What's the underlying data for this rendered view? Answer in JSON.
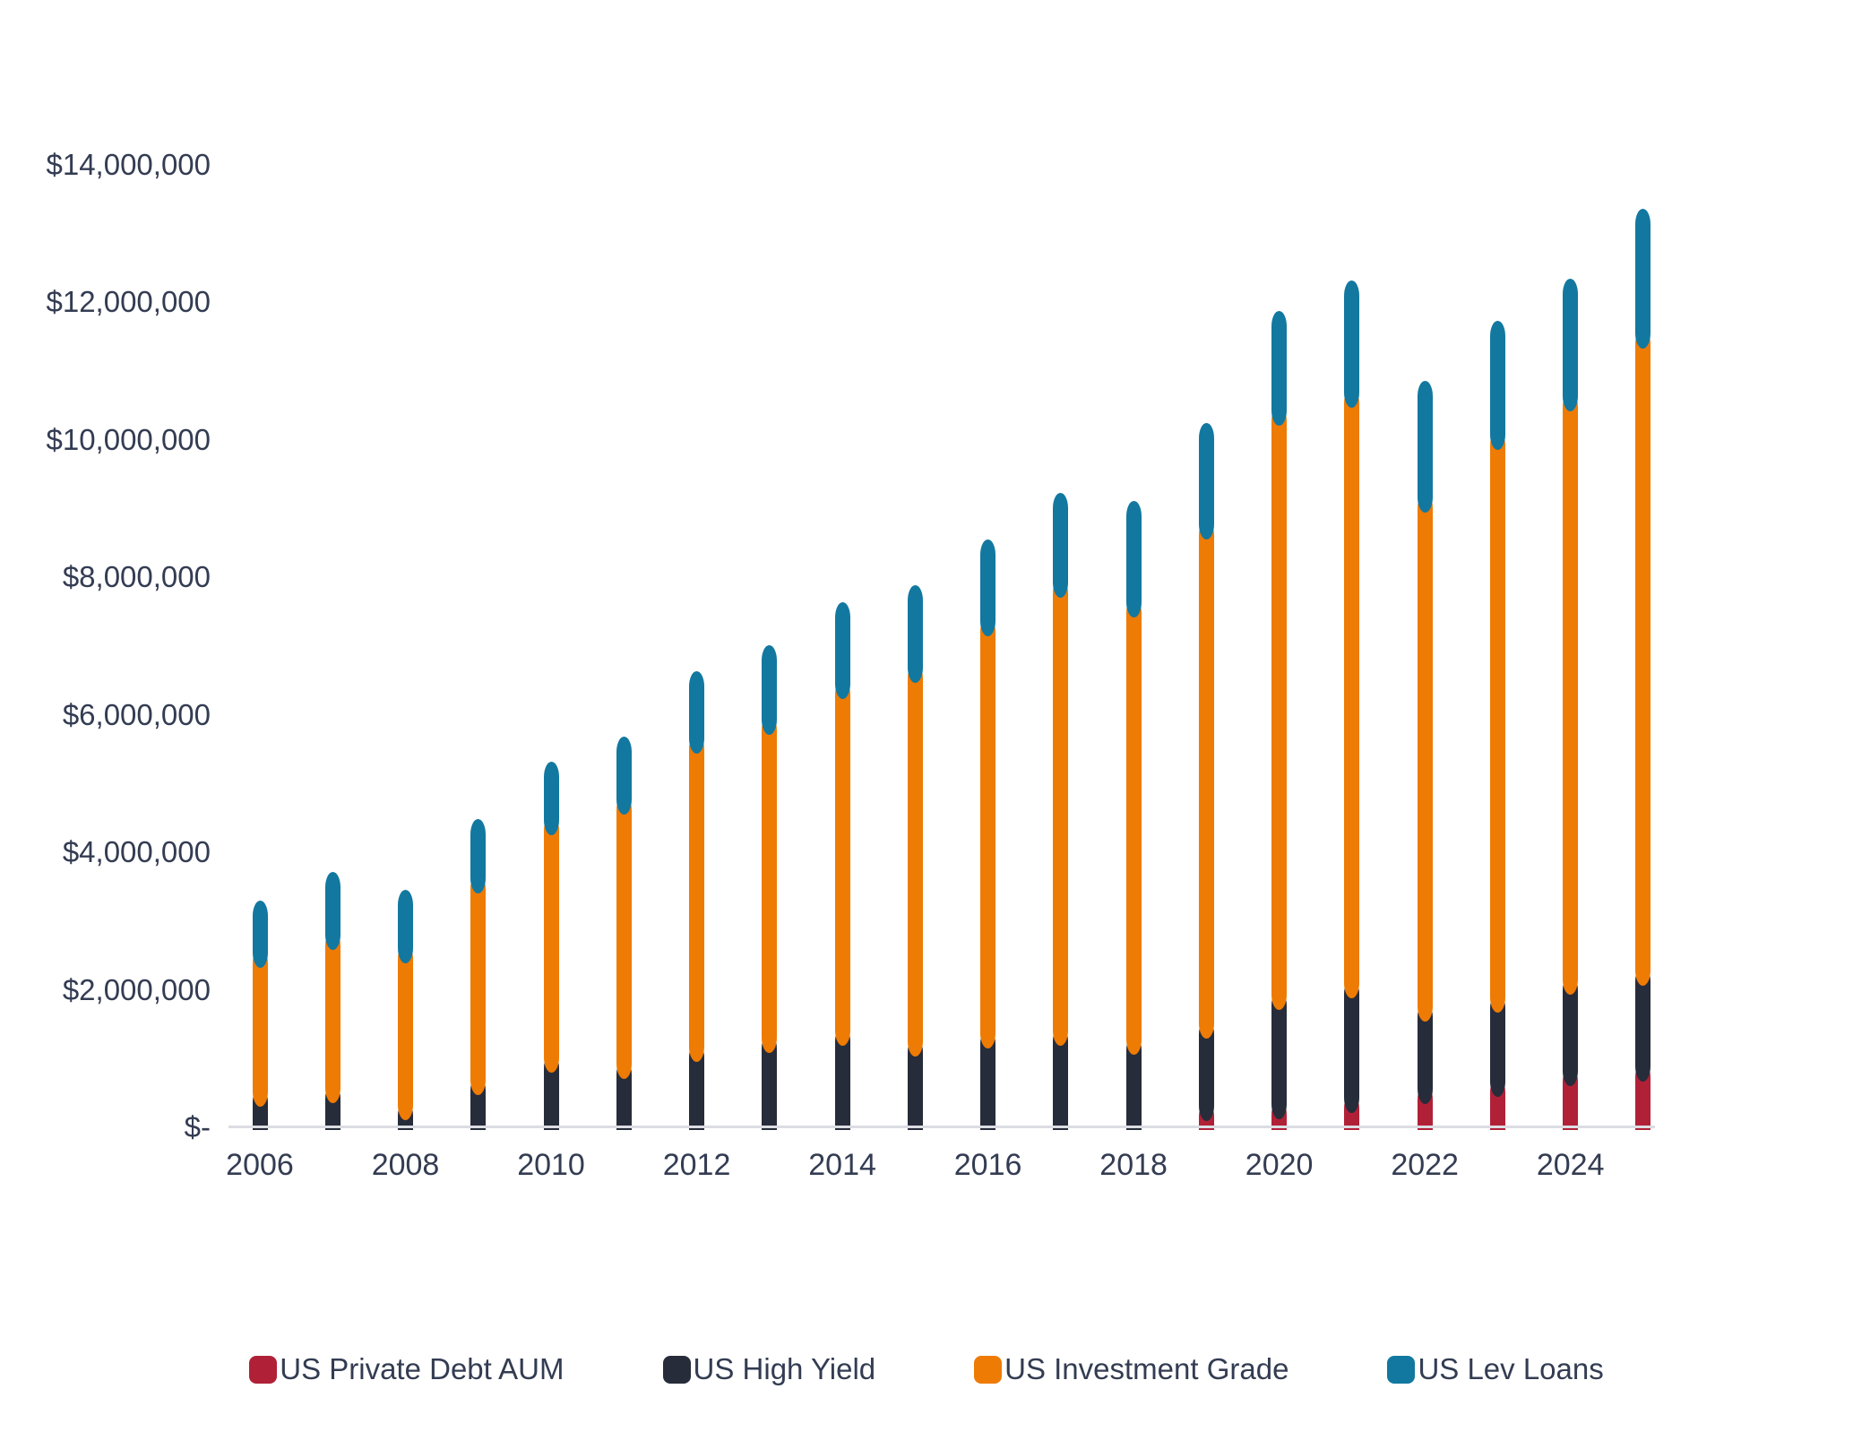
{
  "chart_data": {
    "type": "bar",
    "stacked": true,
    "title": "",
    "categories": [
      "2006",
      "2007",
      "2008",
      "2009",
      "2010",
      "2011",
      "2012",
      "2013",
      "2014",
      "2015",
      "2016",
      "2017",
      "2018",
      "2019",
      "2020",
      "2021",
      "2022",
      "2023",
      "2024",
      "2025"
    ],
    "x_tick_labels": [
      "2006",
      "2008",
      "2010",
      "2012",
      "2014",
      "2016",
      "2018",
      "2020",
      "2022",
      "2024"
    ],
    "series": [
      {
        "name": "US Private Debt AUM",
        "color": "#B02137",
        "values": [
          25000,
          30000,
          35000,
          40000,
          50000,
          55000,
          65000,
          90000,
          120000,
          150000,
          155000,
          160000,
          220000,
          360000,
          390000,
          480000,
          610000,
          720000,
          870000,
          940000
        ]
      },
      {
        "name": "US High Yield",
        "color": "#272C3A",
        "values": [
          550000,
          595000,
          345000,
          705000,
          1020000,
          925000,
          1160000,
          1265000,
          1340000,
          1150000,
          1265000,
          1300000,
          1110000,
          1200000,
          1590000,
          1670000,
          1200000,
          1220000,
          1335000,
          1390000
        ]
      },
      {
        "name": "US Investment Grade",
        "color": "#EE7B04",
        "values": [
          2020000,
          2225000,
          2280000,
          2930000,
          3450000,
          3840000,
          4485000,
          4625000,
          5040000,
          5440000,
          6000000,
          6520000,
          6360000,
          7270000,
          8500000,
          8590000,
          7410000,
          8190000,
          8490000,
          9270000
        ]
      },
      {
        "name": "US Lev Loans",
        "color": "#1278A0",
        "values": [
          690000,
          850000,
          780000,
          800000,
          790000,
          850000,
          915000,
          1020000,
          1130000,
          1130000,
          1120000,
          1240000,
          1410000,
          1400000,
          1380000,
          1570000,
          1630000,
          1590000,
          1640000,
          1750000
        ]
      }
    ],
    "y_axis": {
      "min": 0,
      "max": 14000000,
      "tick_interval": 2000000,
      "tick_labels": [
        "$-",
        "$2,000,000",
        "$4,000,000",
        "$6,000,000",
        "$8,000,000",
        "$10,000,000",
        "$12,000,000",
        "$14,000,000"
      ]
    },
    "legend_position": "bottom",
    "grid": false,
    "background": "#FFFFFF",
    "axis_line_color": "#DCDDE3",
    "text_color": "#333C52"
  }
}
